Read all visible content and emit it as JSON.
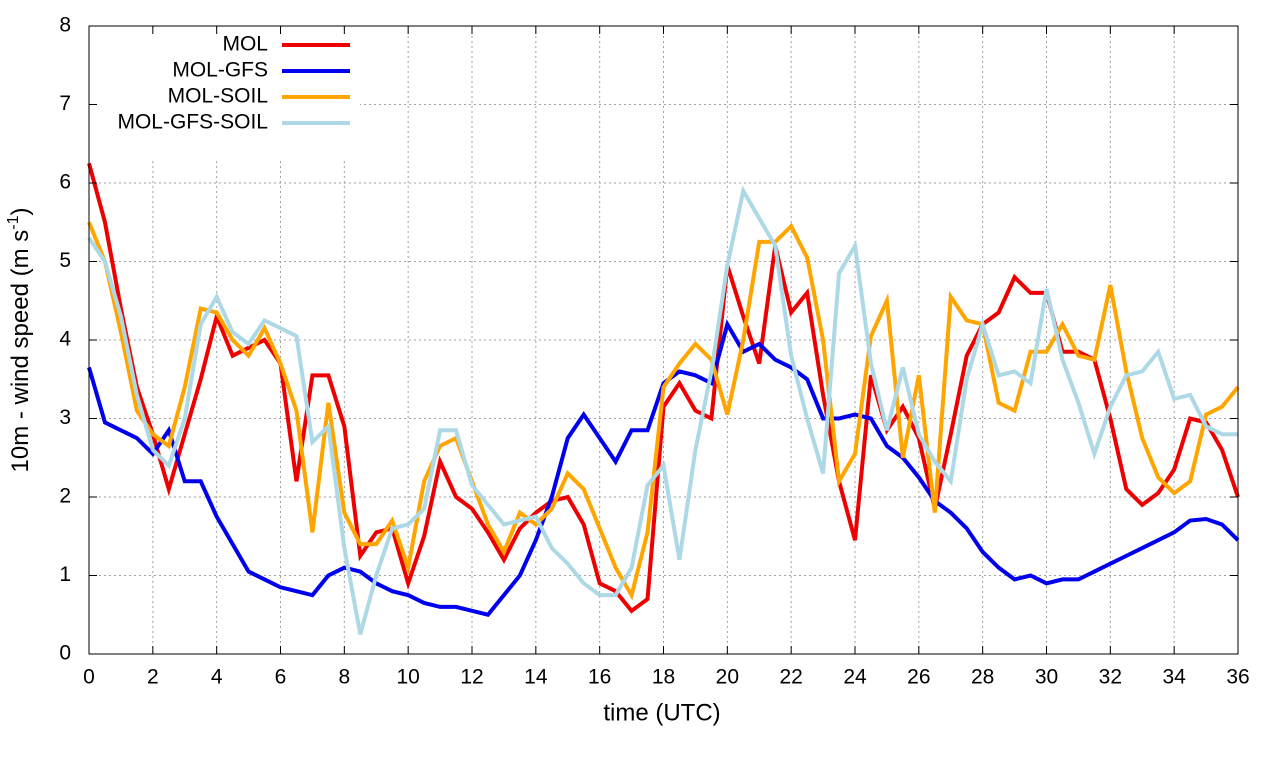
{
  "chart_data": {
    "type": "line",
    "xlabel": "time (UTC)",
    "ylabel": {
      "text": "10m - wind speed  (m s",
      "superscript": "-1",
      "close": ")"
    },
    "x": [
      0,
      0.5,
      1,
      1.5,
      2,
      2.5,
      3,
      3.5,
      4,
      4.5,
      5,
      5.5,
      6,
      6.5,
      7,
      7.5,
      8,
      8.5,
      9,
      9.5,
      10,
      10.5,
      11,
      11.5,
      12,
      12.5,
      13,
      13.5,
      14,
      14.5,
      15,
      15.5,
      16,
      16.5,
      17,
      17.5,
      18,
      18.5,
      19,
      19.5,
      20,
      20.5,
      21,
      21.5,
      22,
      22.5,
      23,
      23.5,
      24,
      24.5,
      25,
      25.5,
      26,
      26.5,
      27,
      27.5,
      28,
      28.5,
      29,
      29.5,
      30,
      30.5,
      31,
      31.5,
      32,
      32.5,
      33,
      33.5,
      34,
      34.5,
      35,
      35.5,
      36
    ],
    "series": [
      {
        "name": "MOL",
        "color": "#ee0000",
        "values": [
          6.25,
          5.5,
          4.4,
          3.4,
          2.8,
          2.1,
          2.8,
          3.5,
          4.3,
          3.8,
          3.9,
          4.0,
          3.7,
          2.2,
          3.55,
          3.55,
          2.9,
          1.25,
          1.55,
          1.6,
          0.9,
          1.5,
          2.45,
          2.0,
          1.85,
          1.55,
          1.2,
          1.6,
          1.8,
          1.95,
          2.0,
          1.65,
          0.9,
          0.8,
          0.55,
          0.7,
          3.15,
          3.45,
          3.1,
          3.0,
          4.95,
          4.3,
          3.7,
          5.2,
          4.35,
          4.6,
          3.3,
          2.2,
          1.45,
          3.55,
          2.85,
          3.15,
          2.75,
          1.85,
          2.8,
          3.8,
          4.2,
          4.35,
          4.8,
          4.6,
          4.6,
          3.85,
          3.85,
          3.75,
          3.0,
          2.1,
          1.9,
          2.05,
          2.35,
          3.0,
          2.95,
          2.6,
          2.0
        ]
      },
      {
        "name": "MOL-GFS",
        "color": "#0000ee",
        "values": [
          3.65,
          2.95,
          2.85,
          2.75,
          2.55,
          2.85,
          2.2,
          2.2,
          1.75,
          1.4,
          1.05,
          0.95,
          0.85,
          0.8,
          0.75,
          1.0,
          1.1,
          1.05,
          0.9,
          0.8,
          0.75,
          0.65,
          0.6,
          0.6,
          0.55,
          0.5,
          0.75,
          1.0,
          1.45,
          2.0,
          2.75,
          3.05,
          2.75,
          2.45,
          2.85,
          2.85,
          3.45,
          3.6,
          3.55,
          3.45,
          4.2,
          3.85,
          3.95,
          3.75,
          3.65,
          3.5,
          3.0,
          3.0,
          3.05,
          3.0,
          2.65,
          2.5,
          2.25,
          1.95,
          1.8,
          1.6,
          1.3,
          1.1,
          0.95,
          1.0,
          0.9,
          0.95,
          0.95,
          1.05,
          1.15,
          1.25,
          1.35,
          1.45,
          1.55,
          1.7,
          1.72,
          1.65,
          1.45
        ]
      },
      {
        "name": "MOL-SOIL",
        "color": "#ffa500",
        "values": [
          5.5,
          5.0,
          4.1,
          3.1,
          2.8,
          2.65,
          3.4,
          4.4,
          4.35,
          4.0,
          3.8,
          4.15,
          3.7,
          3.1,
          1.55,
          3.2,
          1.8,
          1.4,
          1.4,
          1.7,
          1.1,
          2.2,
          2.65,
          2.75,
          2.2,
          1.65,
          1.3,
          1.8,
          1.65,
          1.85,
          2.3,
          2.1,
          1.6,
          1.1,
          0.75,
          1.55,
          3.4,
          3.7,
          3.95,
          3.75,
          3.05,
          4.0,
          5.25,
          5.25,
          5.45,
          5.05,
          4.0,
          2.2,
          2.55,
          4.05,
          4.5,
          2.5,
          3.55,
          1.8,
          4.55,
          4.25,
          4.2,
          3.2,
          3.1,
          3.85,
          3.85,
          4.2,
          3.8,
          3.75,
          4.7,
          3.6,
          2.75,
          2.25,
          2.05,
          2.2,
          3.05,
          3.15,
          3.4
        ]
      },
      {
        "name": "MOL-GFS-SOIL",
        "color": "#add8e6",
        "values": [
          5.3,
          5.0,
          4.3,
          3.3,
          2.6,
          2.4,
          3.0,
          4.2,
          4.55,
          4.1,
          3.95,
          4.25,
          4.15,
          4.05,
          2.7,
          2.9,
          1.35,
          0.25,
          1.0,
          1.6,
          1.65,
          1.85,
          2.85,
          2.85,
          2.15,
          1.9,
          1.65,
          1.7,
          1.75,
          1.35,
          1.15,
          0.9,
          0.75,
          0.75,
          1.1,
          2.15,
          2.4,
          1.2,
          2.6,
          3.6,
          4.95,
          5.9,
          5.55,
          5.2,
          3.8,
          3.0,
          2.3,
          4.85,
          5.2,
          3.7,
          2.85,
          3.65,
          2.8,
          2.45,
          2.2,
          3.5,
          4.2,
          3.55,
          3.6,
          3.45,
          4.65,
          3.75,
          3.2,
          2.55,
          3.15,
          3.55,
          3.6,
          3.85,
          3.25,
          3.3,
          2.9,
          2.8,
          2.8
        ]
      }
    ],
    "xlim": [
      0,
      36
    ],
    "xticks": [
      0,
      2,
      4,
      6,
      8,
      10,
      12,
      14,
      16,
      18,
      20,
      22,
      24,
      26,
      28,
      30,
      32,
      34,
      36
    ],
    "ylim": [
      0,
      8
    ],
    "yticks": [
      0,
      1,
      2,
      3,
      4,
      5,
      6,
      7,
      8
    ],
    "grid": true,
    "legend": "top-left"
  }
}
